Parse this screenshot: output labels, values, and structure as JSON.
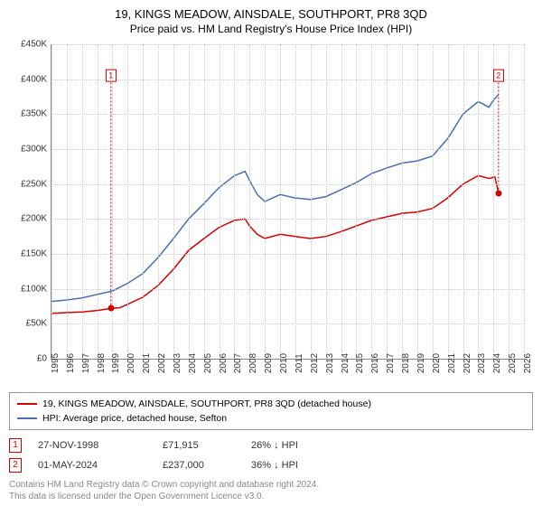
{
  "title": "19, KINGS MEADOW, AINSDALE, SOUTHPORT, PR8 3QD",
  "subtitle": "Price paid vs. HM Land Registry's House Price Index (HPI)",
  "chart": {
    "type": "line",
    "background_color": "#ffffff",
    "grid_color": "#cccccc",
    "axis_color": "#888888",
    "ylim": [
      0,
      450000
    ],
    "ytick_step": 50000,
    "yticklabels": [
      "£0",
      "£50K",
      "£100K",
      "£150K",
      "£200K",
      "£250K",
      "£300K",
      "£350K",
      "£400K",
      "£450K"
    ],
    "xlim": [
      1995,
      2026
    ],
    "xticks": [
      1995,
      1996,
      1997,
      1998,
      1999,
      2000,
      2001,
      2002,
      2003,
      2004,
      2005,
      2006,
      2007,
      2008,
      2009,
      2010,
      2011,
      2012,
      2013,
      2014,
      2015,
      2016,
      2017,
      2018,
      2019,
      2020,
      2021,
      2022,
      2023,
      2024,
      2025,
      2026
    ],
    "series": [
      {
        "name": "price_paid",
        "color": "#d40000",
        "line_width": 1.5,
        "data": [
          [
            1995,
            65000
          ],
          [
            1996,
            66000
          ],
          [
            1997,
            67000
          ],
          [
            1998,
            69000
          ],
          [
            1998.9,
            71915
          ],
          [
            1999.5,
            73000
          ],
          [
            2000,
            78000
          ],
          [
            2001,
            88000
          ],
          [
            2002,
            105000
          ],
          [
            2003,
            128000
          ],
          [
            2004,
            155000
          ],
          [
            2005,
            172000
          ],
          [
            2006,
            188000
          ],
          [
            2007,
            198000
          ],
          [
            2007.7,
            200000
          ],
          [
            2008,
            190000
          ],
          [
            2008.5,
            178000
          ],
          [
            2009,
            172000
          ],
          [
            2010,
            178000
          ],
          [
            2011,
            175000
          ],
          [
            2012,
            172000
          ],
          [
            2013,
            175000
          ],
          [
            2014,
            182000
          ],
          [
            2015,
            190000
          ],
          [
            2016,
            198000
          ],
          [
            2017,
            203000
          ],
          [
            2018,
            208000
          ],
          [
            2019,
            210000
          ],
          [
            2020,
            215000
          ],
          [
            2021,
            230000
          ],
          [
            2022,
            250000
          ],
          [
            2023,
            262000
          ],
          [
            2023.7,
            258000
          ],
          [
            2024.1,
            260000
          ],
          [
            2024.33,
            237000
          ]
        ]
      },
      {
        "name": "hpi",
        "color": "#4a6fb0",
        "line_width": 1.5,
        "data": [
          [
            1995,
            82000
          ],
          [
            1996,
            84000
          ],
          [
            1997,
            87000
          ],
          [
            1998,
            92000
          ],
          [
            1999,
            97000
          ],
          [
            2000,
            108000
          ],
          [
            2001,
            122000
          ],
          [
            2002,
            145000
          ],
          [
            2003,
            172000
          ],
          [
            2004,
            200000
          ],
          [
            2005,
            222000
          ],
          [
            2006,
            245000
          ],
          [
            2007,
            262000
          ],
          [
            2007.7,
            268000
          ],
          [
            2008,
            255000
          ],
          [
            2008.5,
            235000
          ],
          [
            2009,
            225000
          ],
          [
            2010,
            235000
          ],
          [
            2011,
            230000
          ],
          [
            2012,
            228000
          ],
          [
            2013,
            232000
          ],
          [
            2014,
            242000
          ],
          [
            2015,
            252000
          ],
          [
            2016,
            265000
          ],
          [
            2017,
            273000
          ],
          [
            2018,
            280000
          ],
          [
            2019,
            283000
          ],
          [
            2020,
            290000
          ],
          [
            2021,
            315000
          ],
          [
            2022,
            350000
          ],
          [
            2023,
            368000
          ],
          [
            2023.7,
            360000
          ],
          [
            2024,
            370000
          ],
          [
            2024.33,
            378000
          ]
        ]
      }
    ],
    "markers": [
      {
        "n": "1",
        "x": 1998.9,
        "y": 71915,
        "color": "#d40000",
        "line_end_y": 395000
      },
      {
        "n": "2",
        "x": 2024.33,
        "y": 237000,
        "color": "#d40000",
        "line_end_y": 395000
      }
    ]
  },
  "legend": {
    "items": [
      {
        "color": "#d40000",
        "label": "19, KINGS MEADOW, AINSDALE, SOUTHPORT, PR8 3QD (detached house)"
      },
      {
        "color": "#4a6fb0",
        "label": "HPI: Average price, detached house, Sefton"
      }
    ]
  },
  "sales": [
    {
      "n": "1",
      "color": "#d40000",
      "date": "27-NOV-1998",
      "price": "£71,915",
      "diff": "26% ↓ HPI"
    },
    {
      "n": "2",
      "color": "#d40000",
      "date": "01-MAY-2024",
      "price": "£237,000",
      "diff": "36% ↓ HPI"
    }
  ],
  "footer_line1": "Contains HM Land Registry data © Crown copyright and database right 2024.",
  "footer_line2": "This data is licensed under the Open Government Licence v3.0."
}
